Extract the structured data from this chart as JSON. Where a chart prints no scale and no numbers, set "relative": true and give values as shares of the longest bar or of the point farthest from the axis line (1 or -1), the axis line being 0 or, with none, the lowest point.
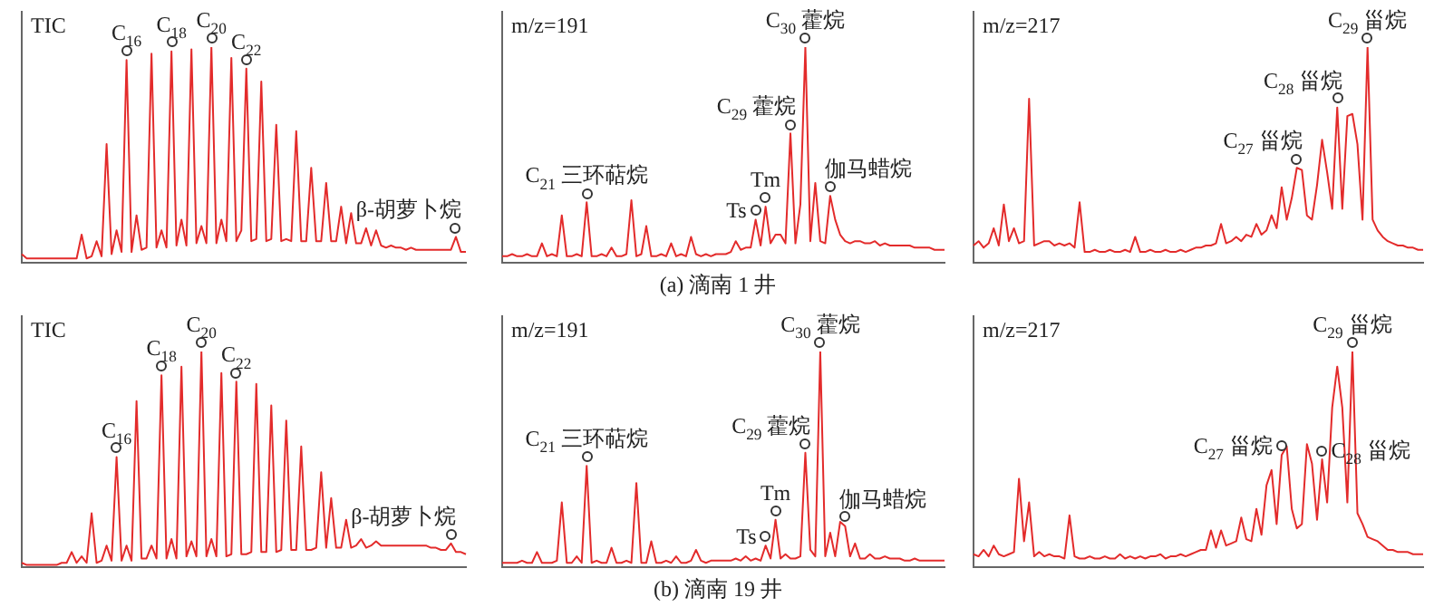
{
  "chart_data": [
    {
      "type": "line",
      "relative": true,
      "ylabel": "TIC",
      "marker": "none",
      "tick_labels": false,
      "categories": [
        null,
        null,
        null,
        null,
        null,
        null,
        null,
        null,
        null,
        null,
        null,
        null,
        null,
        null,
        null,
        null,
        null,
        null,
        null,
        null,
        null,
        null,
        null,
        null,
        null,
        null,
        null,
        null,
        null,
        null,
        null,
        null,
        null,
        null,
        null,
        null,
        null,
        null,
        null,
        null,
        null,
        null,
        null,
        null,
        null,
        null,
        null,
        null,
        null,
        null,
        null,
        null,
        null,
        null,
        null,
        null,
        null,
        null,
        null,
        null,
        null,
        null,
        null,
        null,
        null,
        null,
        null,
        null,
        null,
        null,
        null,
        null,
        null,
        null,
        null,
        null,
        null,
        null,
        null,
        null,
        null,
        null,
        null,
        null,
        null,
        null,
        null,
        null,
        null,
        null
      ],
      "series": [
        {
          "color": "#e32b2b",
          "values": [
            0.04,
            0.02,
            0.02,
            0.02,
            0.02,
            0.02,
            0.02,
            0.02,
            0.02,
            0.02,
            0.02,
            0.02,
            0.13,
            0.02,
            0.03,
            0.1,
            0.03,
            0.55,
            0.04,
            0.15,
            0.05,
            0.94,
            0.05,
            0.22,
            0.06,
            0.07,
            0.97,
            0.07,
            0.15,
            0.07,
            0.98,
            0.08,
            0.2,
            0.08,
            0.99,
            0.09,
            0.17,
            0.09,
            1,
            0.09,
            0.2,
            0.1,
            0.95,
            0.1,
            0.15,
            0.9,
            0.1,
            0.11,
            0.84,
            0.1,
            0.11,
            0.64,
            0.1,
            0.11,
            0.1,
            0.61,
            0.1,
            0.1,
            0.44,
            0.1,
            0.1,
            0.37,
            0.1,
            0.1,
            0.26,
            0.09,
            0.23,
            0.09,
            0.09,
            0.16,
            0.08,
            0.15,
            0.08,
            0.07,
            0.08,
            0.07,
            0.07,
            0.06,
            0.07,
            0.06,
            0.06,
            0.06,
            0.06,
            0.06,
            0.06,
            0.06,
            0.06,
            0.12,
            0.05,
            0.05
          ]
        }
      ],
      "annotations": [
        "C$_{16}$",
        "C$_{18}$",
        "C$_{20}$",
        "C$_{22}$",
        "β-胡萝卜烷"
      ]
    },
    {
      "type": "line",
      "relative": true,
      "ylabel": "m/z=191",
      "marker": "none",
      "tick_labels": false,
      "categories": [
        null,
        null,
        null,
        null,
        null,
        null,
        null,
        null,
        null,
        null,
        null,
        null,
        null,
        null,
        null,
        null,
        null,
        null,
        null,
        null,
        null,
        null,
        null,
        null,
        null,
        null,
        null,
        null,
        null,
        null,
        null,
        null,
        null,
        null,
        null,
        null,
        null,
        null,
        null,
        null,
        null,
        null,
        null,
        null,
        null,
        null,
        null,
        null,
        null,
        null,
        null,
        null,
        null,
        null,
        null,
        null,
        null,
        null,
        null,
        null,
        null,
        null,
        null,
        null,
        null,
        null,
        null,
        null,
        null,
        null,
        null,
        null,
        null,
        null,
        null,
        null,
        null,
        null,
        null,
        null,
        null,
        null,
        null,
        null,
        null,
        null,
        null,
        null,
        null,
        null
      ],
      "series": [
        {
          "color": "#e32b2b",
          "values": [
            0.03,
            0.03,
            0.04,
            0.03,
            0.03,
            0.04,
            0.03,
            0.03,
            0.09,
            0.03,
            0.04,
            0.03,
            0.22,
            0.03,
            0.03,
            0.04,
            0.03,
            0.28,
            0.03,
            0.03,
            0.04,
            0.03,
            0.07,
            0.03,
            0.03,
            0.04,
            0.29,
            0.03,
            0.04,
            0.17,
            0.03,
            0.03,
            0.04,
            0.03,
            0.09,
            0.03,
            0.04,
            0.03,
            0.12,
            0.04,
            0.03,
            0.04,
            0.03,
            0.04,
            0.04,
            0.04,
            0.05,
            0.1,
            0.06,
            0.07,
            0.07,
            0.2,
            0.08,
            0.26,
            0.09,
            0.13,
            0.13,
            0.09,
            0.6,
            0.09,
            0.27,
            1,
            0.1,
            0.37,
            0.1,
            0.09,
            0.31,
            0.2,
            0.13,
            0.1,
            0.09,
            0.1,
            0.1,
            0.09,
            0.09,
            0.1,
            0.08,
            0.09,
            0.08,
            0.08,
            0.08,
            0.08,
            0.08,
            0.07,
            0.07,
            0.07,
            0.07,
            0.06,
            0.06,
            0.06
          ]
        }
      ],
      "annotations": [
        "C$_{21}$ 三环萜烷",
        "Ts",
        "Tm",
        "C$_{29}$ 藿烷",
        "C$_{30}$ 藿烷",
        "伽马蜡烷",
        "(a) 滴南 1 井"
      ]
    },
    {
      "type": "line",
      "relative": true,
      "ylabel": "m/z=217",
      "marker": "none",
      "tick_labels": false,
      "categories": [
        null,
        null,
        null,
        null,
        null,
        null,
        null,
        null,
        null,
        null,
        null,
        null,
        null,
        null,
        null,
        null,
        null,
        null,
        null,
        null,
        null,
        null,
        null,
        null,
        null,
        null,
        null,
        null,
        null,
        null,
        null,
        null,
        null,
        null,
        null,
        null,
        null,
        null,
        null,
        null,
        null,
        null,
        null,
        null,
        null,
        null,
        null,
        null,
        null,
        null,
        null,
        null,
        null,
        null,
        null,
        null,
        null,
        null,
        null,
        null,
        null,
        null,
        null,
        null,
        null,
        null,
        null,
        null,
        null,
        null,
        null,
        null,
        null,
        null,
        null,
        null,
        null,
        null,
        null,
        null,
        null,
        null,
        null,
        null,
        null,
        null,
        null,
        null,
        null,
        null
      ],
      "series": [
        {
          "color": "#e32b2b",
          "values": [
            0.08,
            0.1,
            0.07,
            0.09,
            0.16,
            0.08,
            0.27,
            0.1,
            0.16,
            0.09,
            0.1,
            0.76,
            0.08,
            0.09,
            0.1,
            0.1,
            0.08,
            0.09,
            0.08,
            0.09,
            0.07,
            0.28,
            0.05,
            0.05,
            0.06,
            0.05,
            0.05,
            0.06,
            0.05,
            0.05,
            0.06,
            0.05,
            0.12,
            0.05,
            0.05,
            0.06,
            0.05,
            0.05,
            0.06,
            0.05,
            0.05,
            0.06,
            0.05,
            0.06,
            0.07,
            0.07,
            0.08,
            0.08,
            0.09,
            0.18,
            0.09,
            0.1,
            0.12,
            0.1,
            0.13,
            0.12,
            0.18,
            0.13,
            0.15,
            0.22,
            0.16,
            0.35,
            0.2,
            0.3,
            0.44,
            0.43,
            0.22,
            0.2,
            0.36,
            0.57,
            0.42,
            0.25,
            0.72,
            0.25,
            0.68,
            0.69,
            0.55,
            0.2,
            1,
            0.2,
            0.15,
            0.12,
            0.1,
            0.09,
            0.08,
            0.08,
            0.07,
            0.07,
            0.06,
            0.06
          ]
        }
      ],
      "annotations": [
        "C$_{27}$ 甾烷",
        "C$_{28}$ 甾烷",
        "C$_{29}$ 甾烷"
      ]
    },
    {
      "type": "line",
      "relative": true,
      "ylabel": "TIC",
      "marker": "none",
      "tick_labels": false,
      "categories": [
        null,
        null,
        null,
        null,
        null,
        null,
        null,
        null,
        null,
        null,
        null,
        null,
        null,
        null,
        null,
        null,
        null,
        null,
        null,
        null,
        null,
        null,
        null,
        null,
        null,
        null,
        null,
        null,
        null,
        null,
        null,
        null,
        null,
        null,
        null,
        null,
        null,
        null,
        null,
        null,
        null,
        null,
        null,
        null,
        null,
        null,
        null,
        null,
        null,
        null,
        null,
        null,
        null,
        null,
        null,
        null,
        null,
        null,
        null,
        null,
        null,
        null,
        null,
        null,
        null,
        null,
        null,
        null,
        null,
        null,
        null,
        null,
        null,
        null,
        null,
        null,
        null,
        null,
        null,
        null,
        null,
        null,
        null,
        null,
        null,
        null,
        null,
        null,
        null,
        null
      ],
      "series": [
        {
          "color": "#e32b2b",
          "values": [
            0.02,
            0.01,
            0.01,
            0.01,
            0.01,
            0.01,
            0.01,
            0.01,
            0.02,
            0.02,
            0.07,
            0.02,
            0.05,
            0.02,
            0.25,
            0.02,
            0.03,
            0.1,
            0.03,
            0.51,
            0.03,
            0.1,
            0.03,
            0.77,
            0.04,
            0.04,
            0.1,
            0.04,
            0.89,
            0.04,
            0.13,
            0.04,
            0.93,
            0.05,
            0.12,
            0.05,
            1,
            0.05,
            0.13,
            0.05,
            0.9,
            0.05,
            0.06,
            0.86,
            0.06,
            0.06,
            0.07,
            0.85,
            0.07,
            0.07,
            0.75,
            0.07,
            0.08,
            0.68,
            0.08,
            0.08,
            0.56,
            0.08,
            0.08,
            0.09,
            0.44,
            0.09,
            0.32,
            0.09,
            0.09,
            0.22,
            0.09,
            0.1,
            0.13,
            0.09,
            0.1,
            0.12,
            0.1,
            0.1,
            0.1,
            0.1,
            0.1,
            0.1,
            0.1,
            0.1,
            0.1,
            0.1,
            0.09,
            0.09,
            0.08,
            0.08,
            0.11,
            0.07,
            0.07,
            0.06
          ]
        }
      ],
      "annotations": [
        "C$_{16}$",
        "C$_{18}$",
        "C$_{20}$",
        "C$_{22}$",
        "β-胡萝卜烷"
      ]
    },
    {
      "type": "line",
      "relative": true,
      "ylabel": "m/z=191",
      "marker": "none",
      "tick_labels": false,
      "categories": [
        null,
        null,
        null,
        null,
        null,
        null,
        null,
        null,
        null,
        null,
        null,
        null,
        null,
        null,
        null,
        null,
        null,
        null,
        null,
        null,
        null,
        null,
        null,
        null,
        null,
        null,
        null,
        null,
        null,
        null,
        null,
        null,
        null,
        null,
        null,
        null,
        null,
        null,
        null,
        null,
        null,
        null,
        null,
        null,
        null,
        null,
        null,
        null,
        null,
        null,
        null,
        null,
        null,
        null,
        null,
        null,
        null,
        null,
        null,
        null,
        null,
        null,
        null,
        null,
        null,
        null,
        null,
        null,
        null,
        null,
        null,
        null,
        null,
        null,
        null,
        null,
        null,
        null,
        null,
        null,
        null,
        null,
        null,
        null,
        null,
        null,
        null,
        null,
        null,
        null
      ],
      "series": [
        {
          "color": "#e32b2b",
          "values": [
            0.02,
            0.02,
            0.02,
            0.02,
            0.03,
            0.02,
            0.02,
            0.07,
            0.02,
            0.02,
            0.02,
            0.03,
            0.3,
            0.02,
            0.02,
            0.05,
            0.02,
            0.47,
            0.02,
            0.03,
            0.02,
            0.02,
            0.09,
            0.02,
            0.02,
            0.03,
            0.02,
            0.39,
            0.02,
            0.02,
            0.12,
            0.02,
            0.02,
            0.03,
            0.02,
            0.05,
            0.02,
            0.02,
            0.03,
            0.08,
            0.03,
            0.02,
            0.03,
            0.03,
            0.03,
            0.03,
            0.03,
            0.04,
            0.03,
            0.05,
            0.03,
            0.04,
            0.03,
            0.1,
            0.04,
            0.22,
            0.04,
            0.06,
            0.04,
            0.04,
            0.05,
            0.53,
            0.08,
            0.05,
            1,
            0.05,
            0.16,
            0.05,
            0.21,
            0.19,
            0.05,
            0.11,
            0.04,
            0.04,
            0.06,
            0.04,
            0.04,
            0.05,
            0.04,
            0.04,
            0.04,
            0.03,
            0.03,
            0.04,
            0.03,
            0.03,
            0.03,
            0.03,
            0.03,
            0.03
          ]
        }
      ],
      "annotations": [
        "C$_{21}$ 三环萜烷",
        "Ts",
        "Tm",
        "C$_{29}$ 藿烷",
        "C$_{30}$ 藿烷",
        "伽马蜡烷",
        "(b) 滴南 19 井"
      ]
    },
    {
      "type": "line",
      "relative": true,
      "ylabel": "m/z=217",
      "marker": "none",
      "tick_labels": false,
      "categories": [
        null,
        null,
        null,
        null,
        null,
        null,
        null,
        null,
        null,
        null,
        null,
        null,
        null,
        null,
        null,
        null,
        null,
        null,
        null,
        null,
        null,
        null,
        null,
        null,
        null,
        null,
        null,
        null,
        null,
        null,
        null,
        null,
        null,
        null,
        null,
        null,
        null,
        null,
        null,
        null,
        null,
        null,
        null,
        null,
        null,
        null,
        null,
        null,
        null,
        null,
        null,
        null,
        null,
        null,
        null,
        null,
        null,
        null,
        null,
        null,
        null,
        null,
        null,
        null,
        null,
        null,
        null,
        null,
        null,
        null,
        null,
        null,
        null,
        null,
        null,
        null,
        null,
        null,
        null,
        null,
        null,
        null,
        null,
        null,
        null,
        null,
        null,
        null,
        null,
        null
      ],
      "series": [
        {
          "color": "#e32b2b",
          "values": [
            0.06,
            0.05,
            0.08,
            0.05,
            0.1,
            0.06,
            0.05,
            0.06,
            0.07,
            0.41,
            0.12,
            0.3,
            0.05,
            0.07,
            0.05,
            0.06,
            0.05,
            0.05,
            0.04,
            0.24,
            0.05,
            0.04,
            0.04,
            0.05,
            0.04,
            0.04,
            0.05,
            0.04,
            0.04,
            0.06,
            0.04,
            0.05,
            0.04,
            0.05,
            0.04,
            0.05,
            0.05,
            0.06,
            0.04,
            0.05,
            0.05,
            0.06,
            0.05,
            0.06,
            0.07,
            0.08,
            0.08,
            0.17,
            0.09,
            0.17,
            0.1,
            0.11,
            0.12,
            0.23,
            0.13,
            0.12,
            0.27,
            0.15,
            0.38,
            0.45,
            0.2,
            0.52,
            0.56,
            0.27,
            0.18,
            0.2,
            0.57,
            0.48,
            0.22,
            0.5,
            0.3,
            0.74,
            0.93,
            0.74,
            0.3,
            1,
            0.25,
            0.2,
            0.14,
            0.13,
            0.12,
            0.1,
            0.08,
            0.08,
            0.07,
            0.07,
            0.07,
            0.06,
            0.06,
            0.06
          ]
        }
      ],
      "annotations": [
        "C$_{27}$ 甾烷",
        "C$_{28}$ 甾烷",
        "C$_{29}$ 甾烷"
      ]
    }
  ]
}
